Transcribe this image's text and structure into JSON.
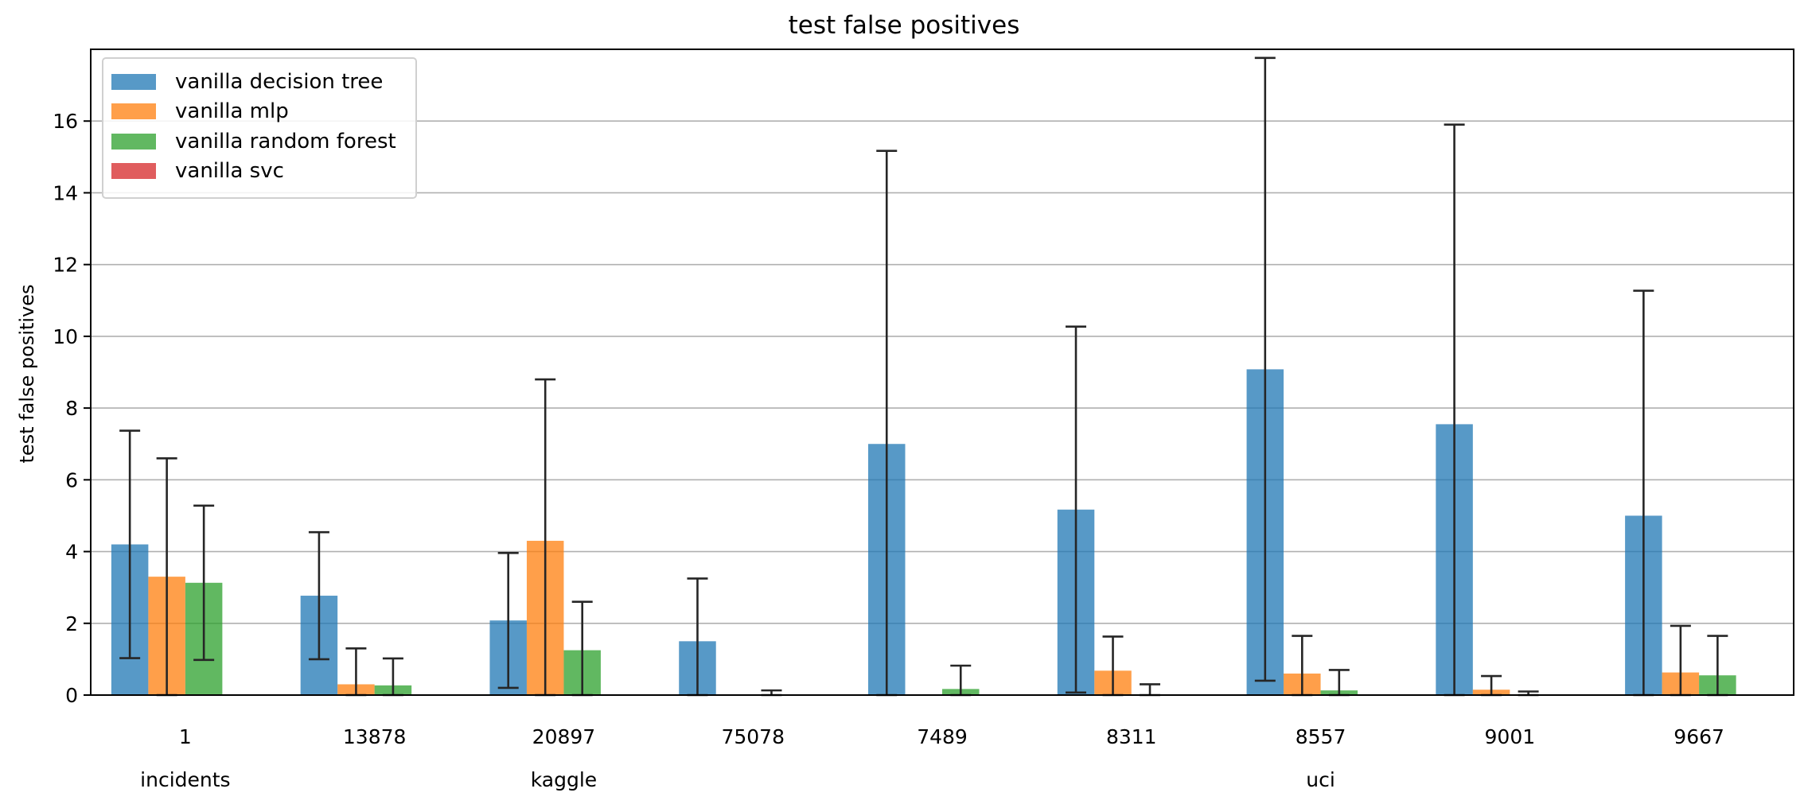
{
  "chart_data": {
    "type": "bar",
    "title": "test false positives",
    "xlabel": "",
    "ylabel": "test false positives",
    "ylim": [
      0,
      18
    ],
    "yticks": [
      0,
      2,
      4,
      6,
      8,
      10,
      12,
      14,
      16
    ],
    "grid": "y",
    "legend_position": "top-left",
    "categories": [
      "1",
      "13878",
      "20897",
      "75078",
      "7489",
      "8311",
      "8557",
      "9001",
      "9667"
    ],
    "groups": [
      {
        "label": "incidents",
        "categories": [
          "1"
        ]
      },
      {
        "label": "kaggle",
        "categories": [
          "13878",
          "20897",
          "75078"
        ]
      },
      {
        "label": "uci",
        "categories": [
          "7489",
          "8311",
          "8557",
          "9001",
          "9667"
        ]
      }
    ],
    "series": [
      {
        "name": "vanilla decision tree",
        "color": "#1f77b4",
        "values": [
          4.2,
          2.77,
          2.08,
          1.5,
          7.0,
          5.17,
          9.08,
          7.55,
          5.0
        ],
        "errors": [
          3.17,
          1.77,
          1.88,
          1.75,
          8.17,
          5.1,
          8.68,
          8.35,
          6.27
        ]
      },
      {
        "name": "vanilla mlp",
        "color": "#ff7f0e",
        "values": [
          3.3,
          0.3,
          4.3,
          0.0,
          0.0,
          0.68,
          0.6,
          0.15,
          0.63
        ],
        "errors": [
          3.3,
          1.0,
          4.5,
          0.0,
          0.0,
          0.95,
          1.05,
          0.38,
          1.3
        ]
      },
      {
        "name": "vanilla random forest",
        "color": "#2ca02c",
        "values": [
          3.13,
          0.27,
          1.25,
          0.0,
          0.17,
          0.0,
          0.13,
          0.0,
          0.55
        ],
        "errors": [
          2.15,
          0.75,
          1.35,
          0.13,
          0.65,
          0.3,
          0.57,
          0.1,
          1.1
        ]
      },
      {
        "name": "vanilla svc",
        "color": "#d62728",
        "values": [
          0,
          0,
          0,
          0,
          0,
          0,
          0,
          0,
          0
        ],
        "errors": [
          0,
          0,
          0,
          0,
          0,
          0,
          0,
          0,
          0
        ]
      }
    ]
  }
}
